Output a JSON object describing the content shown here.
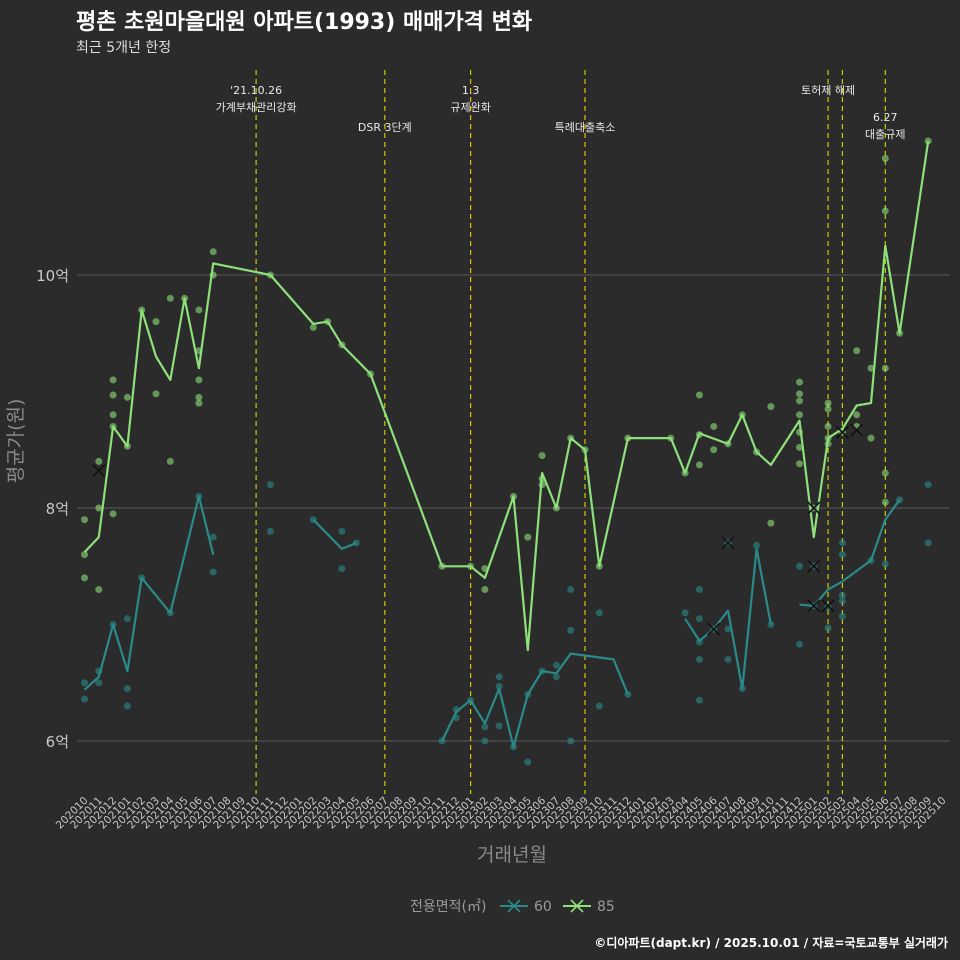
{
  "chart_data": {
    "type": "line",
    "title": "평촌 초원마을대원 아파트(1993) 매매가격 변화",
    "subtitle": "최근 5개년 한정",
    "xlabel": "거래년월",
    "ylabel": "평균가(원)",
    "y_unit": "억",
    "ylim": [
      5.7,
      11.6
    ],
    "y_ticks": [
      {
        "value": 6,
        "label": "6억"
      },
      {
        "value": 8,
        "label": "8억"
      },
      {
        "value": 10,
        "label": "10억"
      }
    ],
    "x_start": "202010",
    "x_end": "202510",
    "x_tick_labels": [
      "202010",
      "202011",
      "202012",
      "202101",
      "202102",
      "202103",
      "202104",
      "202105",
      "202106",
      "202107",
      "202108",
      "202109",
      "202110",
      "202111",
      "202112",
      "202201",
      "202202",
      "202203",
      "202204",
      "202205",
      "202206",
      "202207",
      "202208",
      "202209",
      "202210",
      "202211",
      "202212",
      "202301",
      "202302",
      "202303",
      "202304",
      "202305",
      "202306",
      "202307",
      "202308",
      "202309",
      "202310",
      "202311",
      "202312",
      "202401",
      "202402",
      "202403",
      "202404",
      "202405",
      "202406",
      "202407",
      "202408",
      "202409",
      "202410",
      "202411",
      "202412",
      "202501",
      "202502",
      "202503",
      "202504",
      "202505",
      "202506",
      "202507",
      "202508",
      "202509",
      "202510"
    ],
    "legend_title": "전용면적(㎡)",
    "legend_position": "bottom",
    "caption": "©디아파트(dapt.kr) / 2025.10.01 / 자료=국토교통부 실거래가",
    "colors": {
      "s60": "#2a8a8a",
      "s85": "#8de07a",
      "vline": "#c8cc00",
      "grid": "#5a5a5a",
      "bg": "#2b2b2b"
    },
    "events": [
      {
        "x": "202110",
        "lines": [
          "'21.10.26",
          "가계부채관리강화"
        ],
        "row": 0
      },
      {
        "x": "202207",
        "lines": [
          "DSR 3단계"
        ],
        "row": 1
      },
      {
        "x": "202301",
        "lines": [
          "1.3",
          "규제완화"
        ],
        "row": 0
      },
      {
        "x": "202309",
        "lines": [
          "특례대출축소"
        ],
        "row": 1
      },
      {
        "x": "202502",
        "lines": [
          "토허제 해제"
        ],
        "row": 0
      },
      {
        "x": "202503",
        "lines": [],
        "row": 0
      },
      {
        "x": "202506",
        "lines": [
          "6.27",
          "대출규제"
        ],
        "row": 2
      }
    ],
    "series": [
      {
        "name": "60",
        "line_segments": [
          [
            [
              "202010",
              6.44
            ],
            [
              "202011",
              6.55
            ],
            [
              "202012",
              7.0
            ],
            [
              "202101",
              6.6
            ],
            [
              "202102",
              7.4
            ],
            [
              "202104",
              7.1
            ],
            [
              "202106",
              8.1
            ],
            [
              "202107",
              7.6
            ]
          ],
          [
            [
              "202202",
              7.9
            ],
            [
              "202204",
              7.65
            ],
            [
              "202205",
              7.7
            ]
          ],
          [
            [
              "202211",
              6.0
            ],
            [
              "202212",
              6.25
            ],
            [
              "202301",
              6.35
            ],
            [
              "202302",
              6.15
            ],
            [
              "202303",
              6.45
            ],
            [
              "202304",
              5.95
            ],
            [
              "202305",
              6.4
            ],
            [
              "202306",
              6.6
            ],
            [
              "202307",
              6.58
            ],
            [
              "202308",
              6.75
            ],
            [
              "202311",
              6.7
            ],
            [
              "202312",
              6.4
            ]
          ],
          [
            [
              "202404",
              7.05
            ],
            [
              "202405",
              6.86
            ],
            [
              "202406",
              6.96
            ],
            [
              "202407",
              7.12
            ],
            [
              "202408",
              6.45
            ],
            [
              "202409",
              7.65
            ],
            [
              "202410",
              7.0
            ]
          ],
          [
            [
              "202412",
              7.17
            ],
            [
              "202501",
              7.16
            ],
            [
              "202502",
              7.3
            ],
            [
              "202503",
              7.37
            ],
            [
              "202505",
              7.55
            ],
            [
              "202506",
              7.9
            ],
            [
              "202507",
              8.07
            ]
          ]
        ],
        "points": [
          [
            "202010",
            6.5
          ],
          [
            "202010",
            6.36
          ],
          [
            "202011",
            6.5
          ],
          [
            "202011",
            6.6
          ],
          [
            "202012",
            7.0
          ],
          [
            "202101",
            7.05
          ],
          [
            "202101",
            6.45
          ],
          [
            "202101",
            6.3
          ],
          [
            "202102",
            7.4
          ],
          [
            "202104",
            7.1
          ],
          [
            "202106",
            8.1
          ],
          [
            "202107",
            7.75
          ],
          [
            "202107",
            7.45
          ],
          [
            "202111",
            8.2
          ],
          [
            "202111",
            7.8
          ],
          [
            "202202",
            7.9
          ],
          [
            "202204",
            7.8
          ],
          [
            "202204",
            7.48
          ],
          [
            "202205",
            7.7
          ],
          [
            "202211",
            6.0
          ],
          [
            "202212",
            6.2
          ],
          [
            "202212",
            6.27
          ],
          [
            "202301",
            6.35
          ],
          [
            "202302",
            6.12
          ],
          [
            "202302",
            6.0
          ],
          [
            "202303",
            6.55
          ],
          [
            "202303",
            6.47
          ],
          [
            "202303",
            6.13
          ],
          [
            "202304",
            5.95
          ],
          [
            "202305",
            5.82
          ],
          [
            "202305",
            6.4
          ],
          [
            "202306",
            6.6
          ],
          [
            "202307",
            6.65
          ],
          [
            "202307",
            6.55
          ],
          [
            "202308",
            6.95
          ],
          [
            "202308",
            7.3
          ],
          [
            "202308",
            6.0
          ],
          [
            "202310",
            7.1
          ],
          [
            "202310",
            6.3
          ],
          [
            "202312",
            6.4
          ],
          [
            "202404",
            7.1
          ],
          [
            "202405",
            7.3
          ],
          [
            "202405",
            7.05
          ],
          [
            "202405",
            6.85
          ],
          [
            "202405",
            6.7
          ],
          [
            "202405",
            6.35
          ],
          [
            "202406",
            6.96
          ],
          [
            "202407",
            7.7
          ],
          [
            "202407",
            6.96
          ],
          [
            "202407",
            6.7
          ],
          [
            "202408",
            6.45
          ],
          [
            "202409",
            7.68
          ],
          [
            "202410",
            7.0
          ],
          [
            "202412",
            7.5
          ],
          [
            "202412",
            6.83
          ],
          [
            "202501",
            7.5
          ],
          [
            "202501",
            7.16
          ],
          [
            "202502",
            7.15
          ],
          [
            "202502",
            6.97
          ],
          [
            "202503",
            7.7
          ],
          [
            "202503",
            7.6
          ],
          [
            "202503",
            7.25
          ],
          [
            "202503",
            7.2
          ],
          [
            "202503",
            7.07
          ],
          [
            "202505",
            7.55
          ],
          [
            "202506",
            7.52
          ],
          [
            "202507",
            8.07
          ],
          [
            "202509",
            8.2
          ],
          [
            "202509",
            7.7
          ]
        ],
        "crosses": [
          [
            "202406",
            6.96
          ],
          [
            "202407",
            7.7
          ],
          [
            "202501",
            7.16
          ],
          [
            "202502",
            7.16
          ]
        ]
      },
      {
        "name": "85",
        "line_segments": [
          [
            [
              "202010",
              7.62
            ],
            [
              "202011",
              7.75
            ],
            [
              "202012",
              8.7
            ],
            [
              "202101",
              8.53
            ],
            [
              "202102",
              9.7
            ],
            [
              "202103",
              9.3
            ],
            [
              "202104",
              9.1
            ],
            [
              "202105",
              9.8
            ],
            [
              "202106",
              9.2
            ],
            [
              "202107",
              10.1
            ],
            [
              "202111",
              10.0
            ],
            [
              "202202",
              9.58
            ],
            [
              "202203",
              9.6
            ],
            [
              "202204",
              9.4
            ],
            [
              "202206",
              9.15
            ],
            [
              "202211",
              7.5
            ],
            [
              "202301",
              7.5
            ],
            [
              "202302",
              7.4
            ],
            [
              "202304",
              8.1
            ],
            [
              "202305",
              6.78
            ],
            [
              "202306",
              8.3
            ],
            [
              "202307",
              8.0
            ],
            [
              "202308",
              8.6
            ],
            [
              "202309",
              8.5
            ],
            [
              "202310",
              7.5
            ],
            [
              "202312",
              8.6
            ],
            [
              "202403",
              8.6
            ],
            [
              "202404",
              8.3
            ],
            [
              "202405",
              8.64
            ],
            [
              "202407",
              8.55
            ],
            [
              "202408",
              8.8
            ],
            [
              "202409",
              8.48
            ],
            [
              "202410",
              8.37
            ],
            [
              "202412",
              8.75
            ],
            [
              "202501",
              7.75
            ],
            [
              "202502",
              8.6
            ],
            [
              "202503",
              8.68
            ],
            [
              "202504",
              8.88
            ],
            [
              "202505",
              8.9
            ],
            [
              "202506",
              10.25
            ],
            [
              "202507",
              9.5
            ],
            [
              "202509",
              11.15
            ]
          ]
        ],
        "points": [
          [
            "202010",
            7.9
          ],
          [
            "202010",
            7.6
          ],
          [
            "202010",
            7.4
          ],
          [
            "202011",
            8.4
          ],
          [
            "202011",
            8.0
          ],
          [
            "202011",
            7.3
          ],
          [
            "202012",
            9.1
          ],
          [
            "202012",
            8.97
          ],
          [
            "202012",
            8.8
          ],
          [
            "202012",
            8.7
          ],
          [
            "202012",
            7.95
          ],
          [
            "202101",
            8.95
          ],
          [
            "202101",
            8.53
          ],
          [
            "202102",
            9.7
          ],
          [
            "202103",
            9.6
          ],
          [
            "202103",
            8.98
          ],
          [
            "202104",
            9.8
          ],
          [
            "202104",
            8.4
          ],
          [
            "202105",
            9.8
          ],
          [
            "202106",
            9.7
          ],
          [
            "202106",
            9.35
          ],
          [
            "202106",
            9.1
          ],
          [
            "202106",
            8.95
          ],
          [
            "202106",
            8.9
          ],
          [
            "202107",
            10.2
          ],
          [
            "202107",
            10.0
          ],
          [
            "202111",
            10.0
          ],
          [
            "202202",
            9.55
          ],
          [
            "202203",
            9.6
          ],
          [
            "202204",
            9.4
          ],
          [
            "202206",
            9.15
          ],
          [
            "202211",
            7.5
          ],
          [
            "202301",
            7.5
          ],
          [
            "202302",
            7.48
          ],
          [
            "202302",
            7.3
          ],
          [
            "202304",
            8.1
          ],
          [
            "202305",
            7.75
          ],
          [
            "202306",
            8.45
          ],
          [
            "202306",
            8.25
          ],
          [
            "202306",
            8.2
          ],
          [
            "202307",
            8.0
          ],
          [
            "202308",
            8.6
          ],
          [
            "202309",
            8.5
          ],
          [
            "202310",
            7.5
          ],
          [
            "202312",
            8.6
          ],
          [
            "202403",
            8.6
          ],
          [
            "202404",
            8.3
          ],
          [
            "202405",
            8.97
          ],
          [
            "202405",
            8.63
          ],
          [
            "202405",
            8.37
          ],
          [
            "202406",
            8.7
          ],
          [
            "202406",
            8.5
          ],
          [
            "202407",
            8.55
          ],
          [
            "202408",
            8.8
          ],
          [
            "202409",
            8.48
          ],
          [
            "202410",
            8.87
          ],
          [
            "202410",
            7.87
          ],
          [
            "202412",
            9.08
          ],
          [
            "202412",
            8.98
          ],
          [
            "202412",
            8.92
          ],
          [
            "202412",
            8.8
          ],
          [
            "202412",
            8.65
          ],
          [
            "202412",
            8.52
          ],
          [
            "202412",
            8.38
          ],
          [
            "202501",
            8.0
          ],
          [
            "202502",
            8.9
          ],
          [
            "202502",
            8.85
          ],
          [
            "202502",
            8.7
          ],
          [
            "202502",
            8.6
          ],
          [
            "202502",
            8.55
          ],
          [
            "202503",
            8.65
          ],
          [
            "202504",
            9.35
          ],
          [
            "202504",
            8.8
          ],
          [
            "202504",
            8.7
          ],
          [
            "202505",
            9.2
          ],
          [
            "202505",
            8.6
          ],
          [
            "202506",
            11.0
          ],
          [
            "202506",
            10.55
          ],
          [
            "202506",
            9.2
          ],
          [
            "202506",
            8.3
          ],
          [
            "202506",
            8.05
          ],
          [
            "202507",
            9.5
          ],
          [
            "202509",
            11.15
          ]
        ],
        "crosses": [
          [
            "202011",
            8.32
          ],
          [
            "202501",
            7.5
          ],
          [
            "202501",
            8.0
          ],
          [
            "202503",
            8.65
          ],
          [
            "202504",
            8.67
          ]
        ]
      }
    ]
  }
}
